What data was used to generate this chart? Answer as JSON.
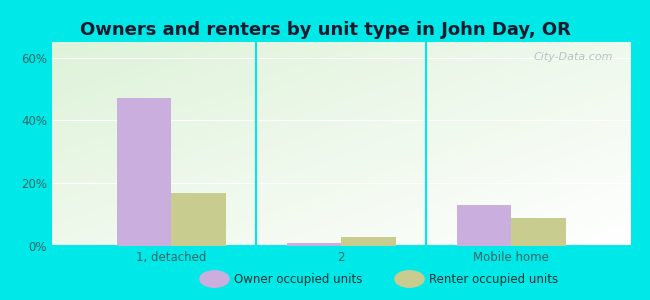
{
  "title": "Owners and renters by unit type in John Day, OR",
  "categories": [
    "1, detached",
    "2",
    "Mobile home"
  ],
  "owner_values": [
    47,
    1,
    13
  ],
  "renter_values": [
    17,
    3,
    9
  ],
  "owner_color": "#c9aede",
  "renter_color": "#c8cc8f",
  "yticks": [
    0,
    20,
    40,
    60
  ],
  "ylabels": [
    "0%",
    "20%",
    "40%",
    "60%"
  ],
  "ylim": [
    0,
    65
  ],
  "background_cyan": "#00e8e8",
  "watermark": "City-Data.com",
  "legend_owner": "Owner occupied units",
  "legend_renter": "Renter occupied units",
  "bar_width": 0.32,
  "title_fontsize": 13,
  "tick_color": "#336666"
}
